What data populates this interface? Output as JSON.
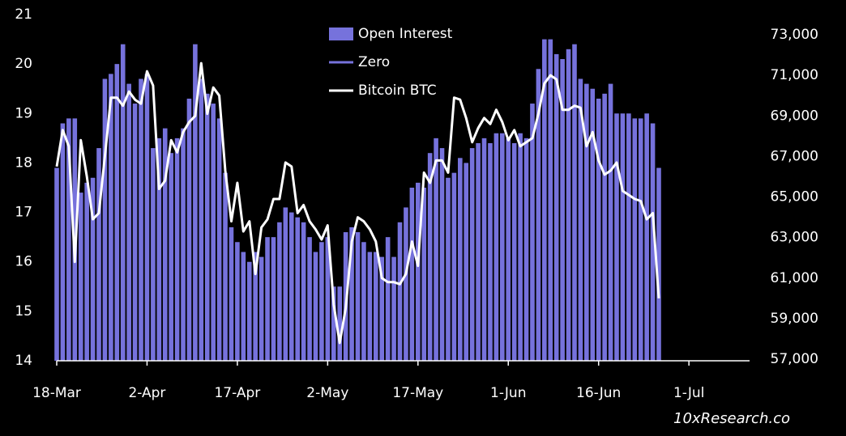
{
  "chart_data": {
    "type": "bar-line",
    "categories": [
      "18-Mar",
      null,
      null,
      null,
      null,
      null,
      null,
      null,
      null,
      null,
      null,
      null,
      null,
      null,
      null,
      "2-Apr",
      null,
      null,
      null,
      null,
      null,
      null,
      null,
      null,
      null,
      null,
      null,
      null,
      null,
      null,
      "17-Apr",
      null,
      null,
      null,
      null,
      null,
      null,
      null,
      null,
      null,
      null,
      null,
      null,
      null,
      null,
      "2-May",
      null,
      null,
      null,
      null,
      null,
      null,
      null,
      null,
      null,
      null,
      null,
      null,
      null,
      null,
      "17-May",
      null,
      null,
      null,
      null,
      null,
      null,
      null,
      null,
      null,
      null,
      null,
      null,
      null,
      null,
      "1-Jun",
      null,
      null,
      null,
      null,
      null,
      null,
      null,
      null,
      null,
      null,
      null,
      null,
      null,
      null,
      "16-Jun",
      null,
      null,
      null,
      null,
      null,
      null,
      null,
      null,
      null,
      null,
      null,
      null,
      null,
      null,
      "1-Jul",
      null,
      null,
      null,
      null,
      null,
      null,
      null,
      null,
      null,
      null
    ],
    "series": [
      {
        "name": "Open Interest",
        "color": "#7672dc",
        "kind": "bar",
        "axis": "y",
        "values": [
          17.9,
          18.8,
          18.9,
          18.9,
          17.4,
          17.6,
          17.7,
          18.3,
          19.7,
          19.8,
          20.0,
          20.4,
          19.6,
          19.2,
          19.7,
          19.8,
          18.3,
          18.5,
          18.7,
          18.2,
          18.5,
          18.7,
          19.3,
          20.4,
          19.7,
          19.4,
          19.2,
          18.9,
          17.8,
          16.7,
          16.4,
          16.2,
          16.0,
          16.2,
          16.1,
          16.5,
          16.5,
          16.8,
          17.1,
          17.0,
          16.9,
          16.8,
          16.5,
          16.2,
          16.4,
          16.5,
          15.5,
          15.5,
          16.6,
          16.7,
          16.6,
          16.4,
          16.2,
          16.2,
          16.1,
          16.5,
          16.1,
          16.8,
          17.1,
          17.5,
          17.6,
          17.5,
          18.2,
          18.5,
          18.3,
          17.7,
          17.8,
          18.1,
          18.0,
          18.3,
          18.4,
          18.5,
          18.4,
          18.6,
          18.6,
          18.5,
          18.4,
          18.6,
          18.5,
          19.2,
          19.9,
          20.5,
          20.5,
          20.2,
          20.1,
          20.3,
          20.4,
          19.7,
          19.6,
          19.5,
          19.3,
          19.4,
          19.6,
          19.0,
          19.0,
          19.0,
          18.9,
          18.9,
          19.0,
          18.8,
          17.9,
          null,
          null,
          null,
          null,
          null,
          null,
          null,
          null,
          null,
          null,
          null,
          null,
          null,
          null,
          null
        ]
      },
      {
        "name": "Zero",
        "color": "#7672dc",
        "kind": "legend"
      },
      {
        "name": "Bitcoin BTC",
        "color": "#ffffff",
        "kind": "line",
        "axis": "y2",
        "values": [
          66500,
          68300,
          67500,
          61800,
          67800,
          66000,
          63900,
          64200,
          67000,
          69900,
          69900,
          69500,
          70200,
          69800,
          69600,
          71200,
          70500,
          65400,
          65800,
          67800,
          67200,
          68200,
          68700,
          69000,
          71600,
          69100,
          70400,
          70000,
          66300,
          63800,
          65700,
          63300,
          63800,
          61200,
          63500,
          63900,
          64900,
          64900,
          66700,
          66500,
          64200,
          64600,
          63800,
          63400,
          62900,
          63600,
          59700,
          57800,
          59500,
          62800,
          64000,
          63800,
          63400,
          62800,
          61000,
          60800,
          60800,
          60700,
          61200,
          62800,
          61600,
          66200,
          65700,
          66800,
          66800,
          66200,
          69900,
          69800,
          68900,
          67700,
          68400,
          68900,
          68600,
          69300,
          68700,
          67800,
          68300,
          67500,
          67700,
          67900,
          69100,
          70600,
          71000,
          70800,
          69300,
          69300,
          69500,
          69400,
          67500,
          68200,
          66800,
          66100,
          66300,
          66700,
          65300,
          65100,
          64900,
          64800,
          63900,
          64200,
          60000,
          null,
          null,
          null,
          null,
          null,
          null,
          null,
          null,
          null,
          null,
          null,
          null,
          null,
          null,
          null
        ]
      }
    ],
    "ylim": [
      14,
      21
    ],
    "yticks": [
      14,
      15,
      16,
      17,
      18,
      19,
      20,
      21
    ],
    "y2lim": [
      57000,
      73000
    ],
    "y2ticks": [
      {
        "value": 57000,
        "label": "57,000"
      },
      {
        "value": 59000,
        "label": "59,000"
      },
      {
        "value": 61000,
        "label": "61,000"
      },
      {
        "value": 63000,
        "label": "63,000"
      },
      {
        "value": 65000,
        "label": "65,000"
      },
      {
        "value": 67000,
        "label": "67,000"
      },
      {
        "value": 69000,
        "label": "69,000"
      },
      {
        "value": 71000,
        "label": "71,000"
      },
      {
        "value": 73000,
        "label": "73,000"
      }
    ],
    "source": "10xResearch.co"
  }
}
